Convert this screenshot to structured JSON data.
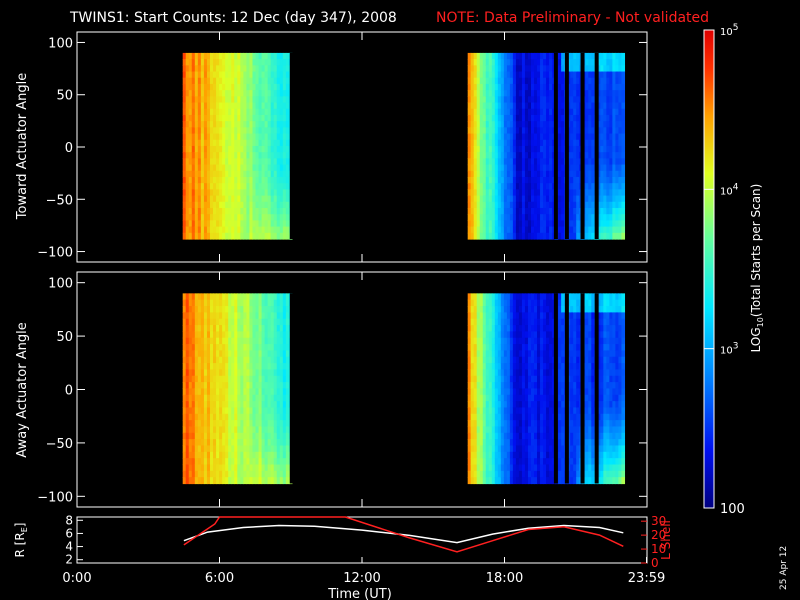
{
  "title": "TWINS1: Start Counts: 12 Dec (day 347), 2008",
  "note": "NOTE: Data Preliminary - Not validated",
  "date_stamp": "25 Apr 12",
  "colors": {
    "background": "#000000",
    "axis": "#ffffff",
    "note": "#ff2020",
    "r_line": "#ffffff",
    "lshell_line": "#ff2020"
  },
  "chart_data": [
    {
      "type": "heatmap",
      "panel": "toward",
      "ylabel": "Toward Actuator Angle",
      "ylim": [
        -110,
        110
      ],
      "yticks": [
        "100",
        "50",
        "0",
        "−50",
        "−100"
      ],
      "xlim_hours": [
        0,
        24
      ],
      "data_blocks": [
        {
          "start_hour": 4.45,
          "end_hour": 9.05
        },
        {
          "start_hour": 16.45,
          "end_hour": 23.05
        }
      ],
      "angle_range": [
        -88,
        90
      ],
      "color_scale": "log",
      "zlim": [
        100,
        100000
      ]
    },
    {
      "type": "heatmap",
      "panel": "away",
      "ylabel": "Away Actuator Angle",
      "ylim": [
        -110,
        110
      ],
      "yticks": [
        "100",
        "50",
        "0",
        "−50",
        "−100"
      ],
      "xlim_hours": [
        0,
        24
      ],
      "data_blocks": [
        {
          "start_hour": 4.45,
          "end_hour": 9.05
        },
        {
          "start_hour": 16.45,
          "end_hour": 23.05
        }
      ],
      "angle_range": [
        -88,
        90
      ],
      "color_scale": "log",
      "zlim": [
        100,
        100000
      ]
    },
    {
      "type": "line",
      "panel": "ephemeris",
      "ylabel_left": "R [R",
      "ylabel_left_sub": "E",
      "ylabel_left_end": "]",
      "ylabel_right": "L Shell",
      "xlabel": "Time (UT)",
      "x_ticks": [
        "0:00",
        "6:00",
        "12:00",
        "18:00",
        "23:59"
      ],
      "yleft_ticks": [
        "8",
        "6",
        "4",
        "2"
      ],
      "yright_ticks": [
        "30",
        "20",
        "10",
        "0"
      ],
      "yleft_range": [
        1.5,
        8.5
      ],
      "yright_range": [
        0,
        33
      ],
      "series": [
        {
          "color": "white",
          "axis": "left",
          "x": [
            4.5,
            5.5,
            7.0,
            8.5,
            10.0,
            12.0,
            14.0,
            16.0,
            17.5,
            19.0,
            20.5,
            22.0,
            23.0
          ],
          "y": [
            4.9,
            6.2,
            6.9,
            7.2,
            7.1,
            6.5,
            5.7,
            4.6,
            5.9,
            6.8,
            7.2,
            6.9,
            6.1
          ]
        },
        {
          "color": "red",
          "axis": "right",
          "x": [
            4.5,
            5.8,
            6.0,
            11.3,
            14.0,
            16.0,
            17.5,
            19.0,
            20.5,
            22.0,
            23.0
          ],
          "y": [
            13,
            28,
            33,
            33,
            18,
            8,
            16,
            24,
            26,
            20,
            12
          ]
        }
      ]
    }
  ],
  "colorbar": {
    "label": "LOG",
    "label_sub": "10",
    "label_rest": "(Total Starts per Scan)",
    "ticks": [
      {
        "exp_base": "10",
        "exp": "5",
        "value": 100000
      },
      {
        "exp_base": "10",
        "exp": "4",
        "value": 10000
      },
      {
        "exp_base": "10",
        "exp": "3",
        "value": 1000
      },
      {
        "label": "100",
        "value": 100
      }
    ]
  }
}
